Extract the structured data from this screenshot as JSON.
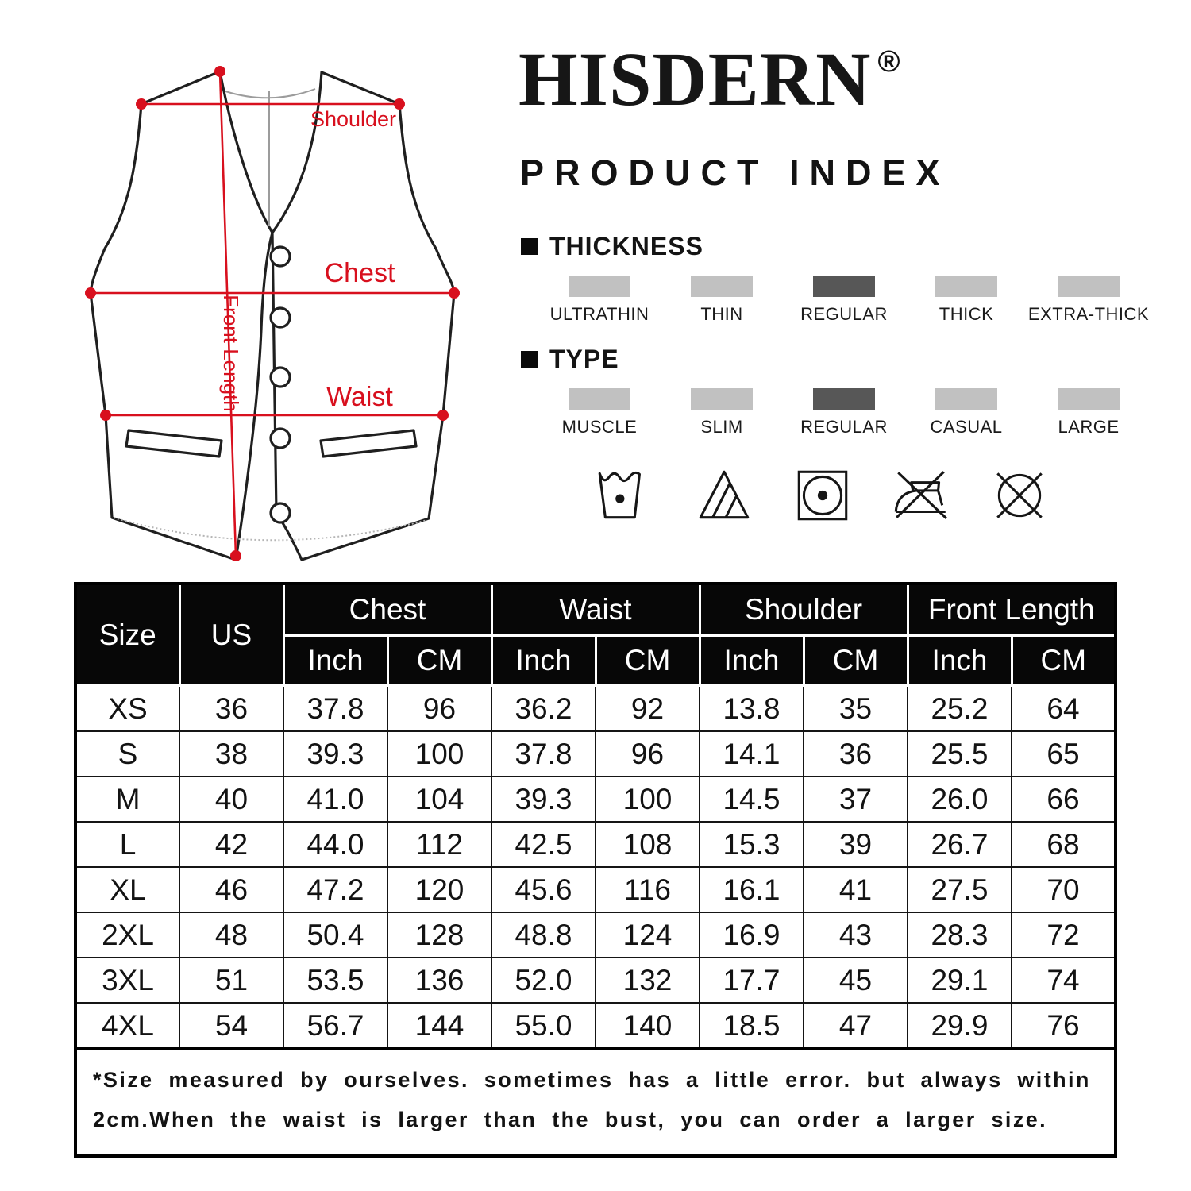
{
  "brand": {
    "name": "HISDERN",
    "registered_mark": "®",
    "tagline": "PRODUCT INDEX"
  },
  "diagram": {
    "accent_color": "#d8101e",
    "labels": {
      "shoulder": "Shoulder",
      "chest": "Chest",
      "waist": "Waist",
      "front_length": "Front Length"
    }
  },
  "thickness": {
    "title": "THICKNESS",
    "swatch_colors": {
      "normal": "#c1c1c1",
      "selected": "#575757"
    },
    "options": [
      {
        "label": "ULTRATHIN",
        "selected": false
      },
      {
        "label": "THIN",
        "selected": false
      },
      {
        "label": "REGULAR",
        "selected": true
      },
      {
        "label": "THICK",
        "selected": false
      },
      {
        "label": "EXTRA-THICK",
        "selected": false
      }
    ]
  },
  "type": {
    "title": "TYPE",
    "options": [
      {
        "label": "MUSCLE",
        "selected": false
      },
      {
        "label": "SLIM",
        "selected": false
      },
      {
        "label": "REGULAR",
        "selected": true
      },
      {
        "label": "CASUAL",
        "selected": false
      },
      {
        "label": "LARGE",
        "selected": false
      }
    ]
  },
  "care_icons": [
    "machine-wash",
    "non-chlorine-bleach",
    "tumble-dry-normal",
    "do-not-iron",
    "do-not-dry-clean"
  ],
  "size_table": {
    "col_size": "Size",
    "col_us": "US",
    "groups": [
      "Chest",
      "Waist",
      "Shoulder",
      "Front Length"
    ],
    "sub_inch": "Inch",
    "sub_cm": "CM",
    "rows": [
      [
        "XS",
        "36",
        "37.8",
        "96",
        "36.2",
        "92",
        "13.8",
        "35",
        "25.2",
        "64"
      ],
      [
        "S",
        "38",
        "39.3",
        "100",
        "37.8",
        "96",
        "14.1",
        "36",
        "25.5",
        "65"
      ],
      [
        "M",
        "40",
        "41.0",
        "104",
        "39.3",
        "100",
        "14.5",
        "37",
        "26.0",
        "66"
      ],
      [
        "L",
        "42",
        "44.0",
        "112",
        "42.5",
        "108",
        "15.3",
        "39",
        "26.7",
        "68"
      ],
      [
        "XL",
        "46",
        "47.2",
        "120",
        "45.6",
        "116",
        "16.1",
        "41",
        "27.5",
        "70"
      ],
      [
        "2XL",
        "48",
        "50.4",
        "128",
        "48.8",
        "124",
        "16.9",
        "43",
        "28.3",
        "72"
      ],
      [
        "3XL",
        "51",
        "53.5",
        "136",
        "52.0",
        "132",
        "17.7",
        "45",
        "29.1",
        "74"
      ],
      [
        "4XL",
        "54",
        "56.7",
        "144",
        "55.0",
        "140",
        "18.5",
        "47",
        "29.9",
        "76"
      ]
    ]
  },
  "note": {
    "line1": "*Size measured by ourselves. sometimes has a little error. but always within",
    "line2": "2cm.When the waist is larger than the bust, you can order a larger size."
  }
}
